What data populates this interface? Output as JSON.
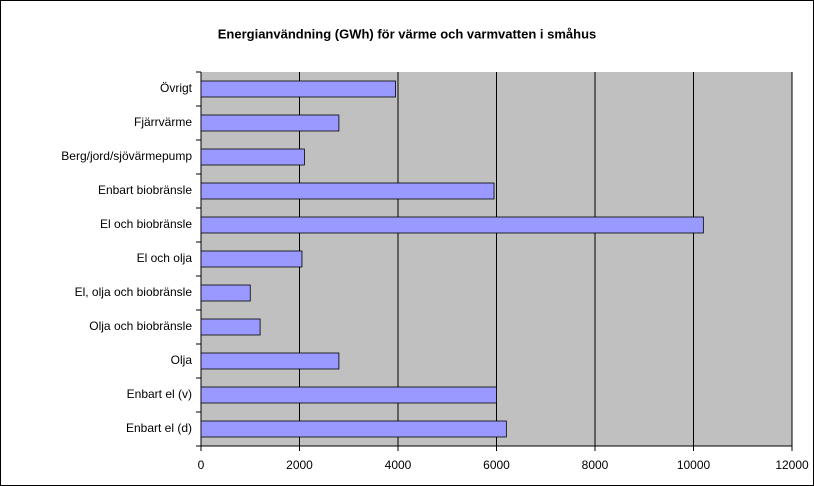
{
  "chart_data": {
    "type": "bar",
    "orientation": "horizontal",
    "title": "Energianvändning (GWh) för värme och varmvatten i småhus",
    "categories": [
      "Övrigt",
      "Fjärrvärme",
      "Berg/jord/sjövärmepump",
      "Enbart biobränsle",
      "El och biobränsle",
      "El och olja",
      "El, olja och biobränsle",
      "Olja och biobränsle",
      "Olja",
      "Enbart el (v)",
      "Enbart el (d)"
    ],
    "values": [
      3950,
      2800,
      2100,
      5950,
      10200,
      2050,
      1000,
      1200,
      2800,
      6000,
      6200
    ],
    "color": "#9999ff",
    "xlim": [
      0,
      12000
    ],
    "xticks": [
      0,
      2000,
      4000,
      6000,
      8000,
      10000,
      12000
    ],
    "grid": true
  }
}
